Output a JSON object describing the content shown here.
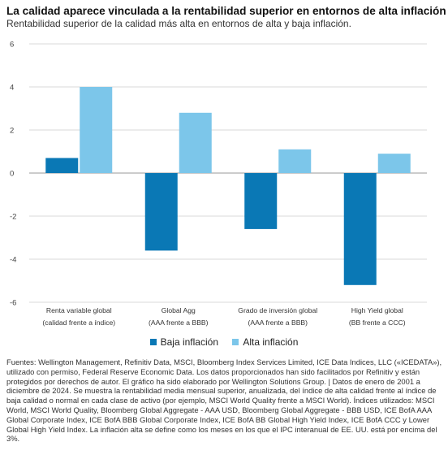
{
  "title": "La calidad aparece vinculada a la rentabilidad superior en entornos de alta inflación (%)",
  "subtitle": "Rentabilidad superior de la calidad más alta en entornos de alta y baja inflación.",
  "colors": {
    "baja": "#0a78b5",
    "alta": "#7cc6ea",
    "grid": "#d9d9d9"
  },
  "chart_data": {
    "type": "bar",
    "categories": [
      [
        "Renta variable global",
        "(calidad frente a índice)"
      ],
      [
        "Global Agg",
        "(AAA frente a BBB)"
      ],
      [
        "Grado de inversión global",
        "(AAA frente a BBB)"
      ],
      [
        "High Yield global",
        "(BB frente a CCC)"
      ]
    ],
    "series": [
      {
        "name": "Baja inflación",
        "values": [
          0.7,
          -3.6,
          -2.6,
          -5.2
        ]
      },
      {
        "name": "Alta inflación",
        "values": [
          4.0,
          2.8,
          1.1,
          0.9
        ]
      }
    ],
    "ylim": [
      -6,
      6
    ],
    "yticks": [
      -6,
      -4,
      -2,
      0,
      2,
      4,
      6
    ],
    "grid": true,
    "legend": "bottom-center"
  },
  "legend": {
    "baja": "Baja inflación",
    "alta": "Alta inflación"
  },
  "footnote": "Fuentes: Wellington Management, Refinitiv Data, MSCI, Bloomberg Index Services Limited, ICE Data Indices, LLC («ICEDATA»), utilizado con permiso, Federal Reserve Economic Data. Los datos proporcionados han sido facilitados por Refinitiv y están protegidos por derechos de autor. El gráfico ha sido elaborado por Wellington Solutions Group. | Datos de enero de 2001 a diciembre de 2024. Se muestra la rentabilidad media mensual superior, anualizada, del índice de alta calidad frente al índice de baja calidad o normal en cada clase de activo (por ejemplo, MSCI World Quality frente a MSCI World). Índices utilizados: MSCI World, MSCI World Quality, Bloomberg Global Aggregate - AAA USD, Bloomberg Global Aggregate - BBB USD, ICE BofA AAA Global Corporate Index, ICE BofA BBB Global Corporate Index, ICE BofA BB Global High Yield Index, ICE BofA CCC y Lower Global High Yield Index. La inflación alta se define como los meses en los que el IPC interanual de EE. UU. está por encima del 3%."
}
